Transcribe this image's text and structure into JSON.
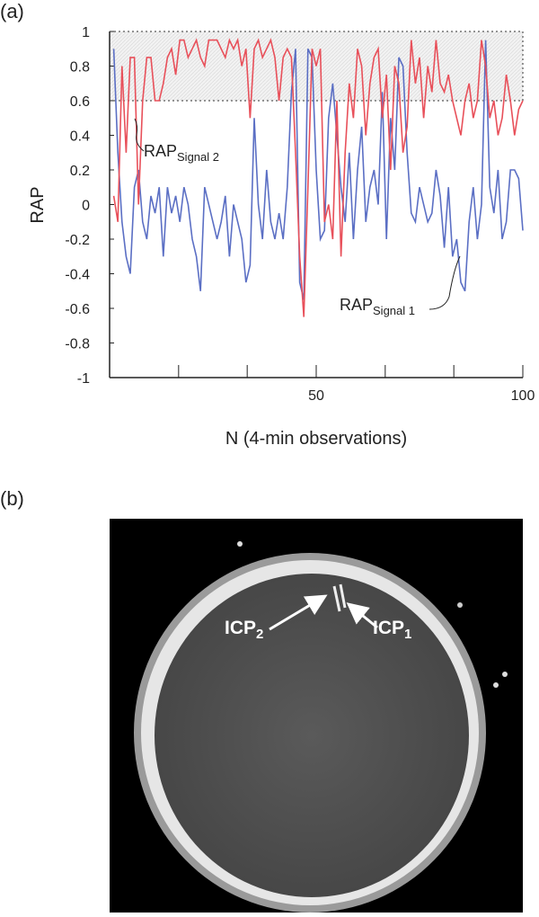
{
  "chart_data": {
    "type": "line",
    "panel_label": "(a)",
    "xlabel": "N (4-min observations)",
    "ylabel": "RAP",
    "x": [
      1,
      2,
      3,
      4,
      5,
      6,
      7,
      8,
      9,
      10,
      11,
      12,
      13,
      14,
      15,
      16,
      17,
      18,
      19,
      20,
      21,
      22,
      23,
      24,
      25,
      26,
      27,
      28,
      29,
      30,
      31,
      32,
      33,
      34,
      35,
      36,
      37,
      38,
      39,
      40,
      41,
      42,
      43,
      44,
      45,
      46,
      47,
      48,
      49,
      50,
      51,
      52,
      53,
      54,
      55,
      56,
      57,
      58,
      59,
      60,
      61,
      62,
      63,
      64,
      65,
      66,
      67,
      68,
      69,
      70,
      71,
      72,
      73,
      74,
      75,
      76,
      77,
      78,
      79,
      80,
      81,
      82,
      83,
      84,
      85,
      86,
      87,
      88,
      89,
      90,
      91,
      92,
      93,
      94,
      95,
      96,
      97,
      98,
      99,
      100
    ],
    "series": [
      {
        "color": "#5b6fc4",
        "values": [
          0.9,
          0.3,
          -0.1,
          -0.3,
          -0.4,
          0.1,
          0.2,
          -0.1,
          -0.2,
          0.05,
          -0.05,
          0.1,
          -0.3,
          0.1,
          -0.05,
          0.05,
          -0.1,
          0.1,
          0.0,
          -0.2,
          -0.3,
          -0.5,
          0.1,
          0.0,
          -0.1,
          -0.2,
          -0.1,
          0.05,
          -0.3,
          0.0,
          -0.1,
          -0.2,
          -0.45,
          -0.35,
          0.5,
          0.0,
          -0.2,
          0.2,
          -0.1,
          -0.2,
          -0.05,
          -0.2,
          0.1,
          0.65,
          0.9,
          -0.45,
          -0.55,
          0.9,
          0.85,
          0.2,
          -0.2,
          -0.15,
          0.5,
          0.7,
          0.4,
          0.1,
          -0.1,
          0.3,
          -0.2,
          0.2,
          0.45,
          -0.1,
          0.1,
          0.2,
          0.0,
          0.65,
          -0.2,
          0.5,
          0.2,
          0.85,
          0.8,
          0.3,
          -0.05,
          -0.1,
          0.1,
          0.0,
          -0.1,
          -0.05,
          0.2,
          0.05,
          -0.25,
          0.1,
          -0.3,
          -0.2,
          -0.45,
          -0.5,
          -0.1,
          0.1,
          -0.2,
          0.0,
          0.95,
          0.1,
          -0.05,
          0.2,
          -0.2,
          -0.1,
          0.2,
          0.2,
          0.15,
          -0.15
        ]
      },
      {
        "color": "#e8505a",
        "values": [
          0.05,
          -0.1,
          0.8,
          0.3,
          0.85,
          0.85,
          0.0,
          0.6,
          0.85,
          0.85,
          0.6,
          0.6,
          0.7,
          0.85,
          0.9,
          0.75,
          0.95,
          0.95,
          0.85,
          0.9,
          0.95,
          0.85,
          0.8,
          0.95,
          0.95,
          0.95,
          0.9,
          0.85,
          0.95,
          0.9,
          0.95,
          0.8,
          0.9,
          0.5,
          0.9,
          0.95,
          0.85,
          0.9,
          0.95,
          0.85,
          0.6,
          0.85,
          0.9,
          0.85,
          0.3,
          -0.3,
          -0.65,
          0.1,
          0.9,
          0.8,
          0.9,
          -0.1,
          0.0,
          -0.2,
          0.6,
          -0.3,
          0.3,
          0.7,
          0.5,
          0.9,
          0.8,
          0.4,
          0.7,
          0.85,
          0.9,
          0.5,
          0.75,
          0.2,
          0.8,
          0.7,
          0.3,
          0.45,
          0.95,
          0.7,
          0.85,
          0.5,
          0.8,
          0.65,
          0.95,
          0.7,
          0.65,
          0.75,
          0.6,
          0.5,
          0.4,
          0.6,
          0.7,
          0.5,
          0.6,
          0.95,
          0.8,
          0.5,
          0.6,
          0.4,
          0.5,
          0.75,
          0.6,
          0.4,
          0.55,
          0.6
        ]
      }
    ],
    "xlim": [
      0,
      100
    ],
    "xticks": [
      50,
      100
    ],
    "xminor_ticks": [
      16.7,
      33.3,
      66.7,
      83.3
    ],
    "ylim": [
      -1,
      1
    ],
    "yticks": [
      -1,
      -0.8,
      -0.6,
      -0.4,
      -0.2,
      0,
      0.2,
      0.4,
      0.6,
      0.8,
      1
    ],
    "shaded_band": [
      0.6,
      1
    ],
    "annotations": [
      {
        "text": "RAP",
        "subscript": "Signal 2",
        "series": 1
      },
      {
        "text": "RAP",
        "subscript": "Signal 1",
        "series": 0
      }
    ]
  },
  "image_panel": {
    "panel_label": "(b)",
    "labels": [
      {
        "text": "ICP",
        "subscript": "2"
      },
      {
        "text": "ICP",
        "subscript": "1"
      }
    ]
  }
}
